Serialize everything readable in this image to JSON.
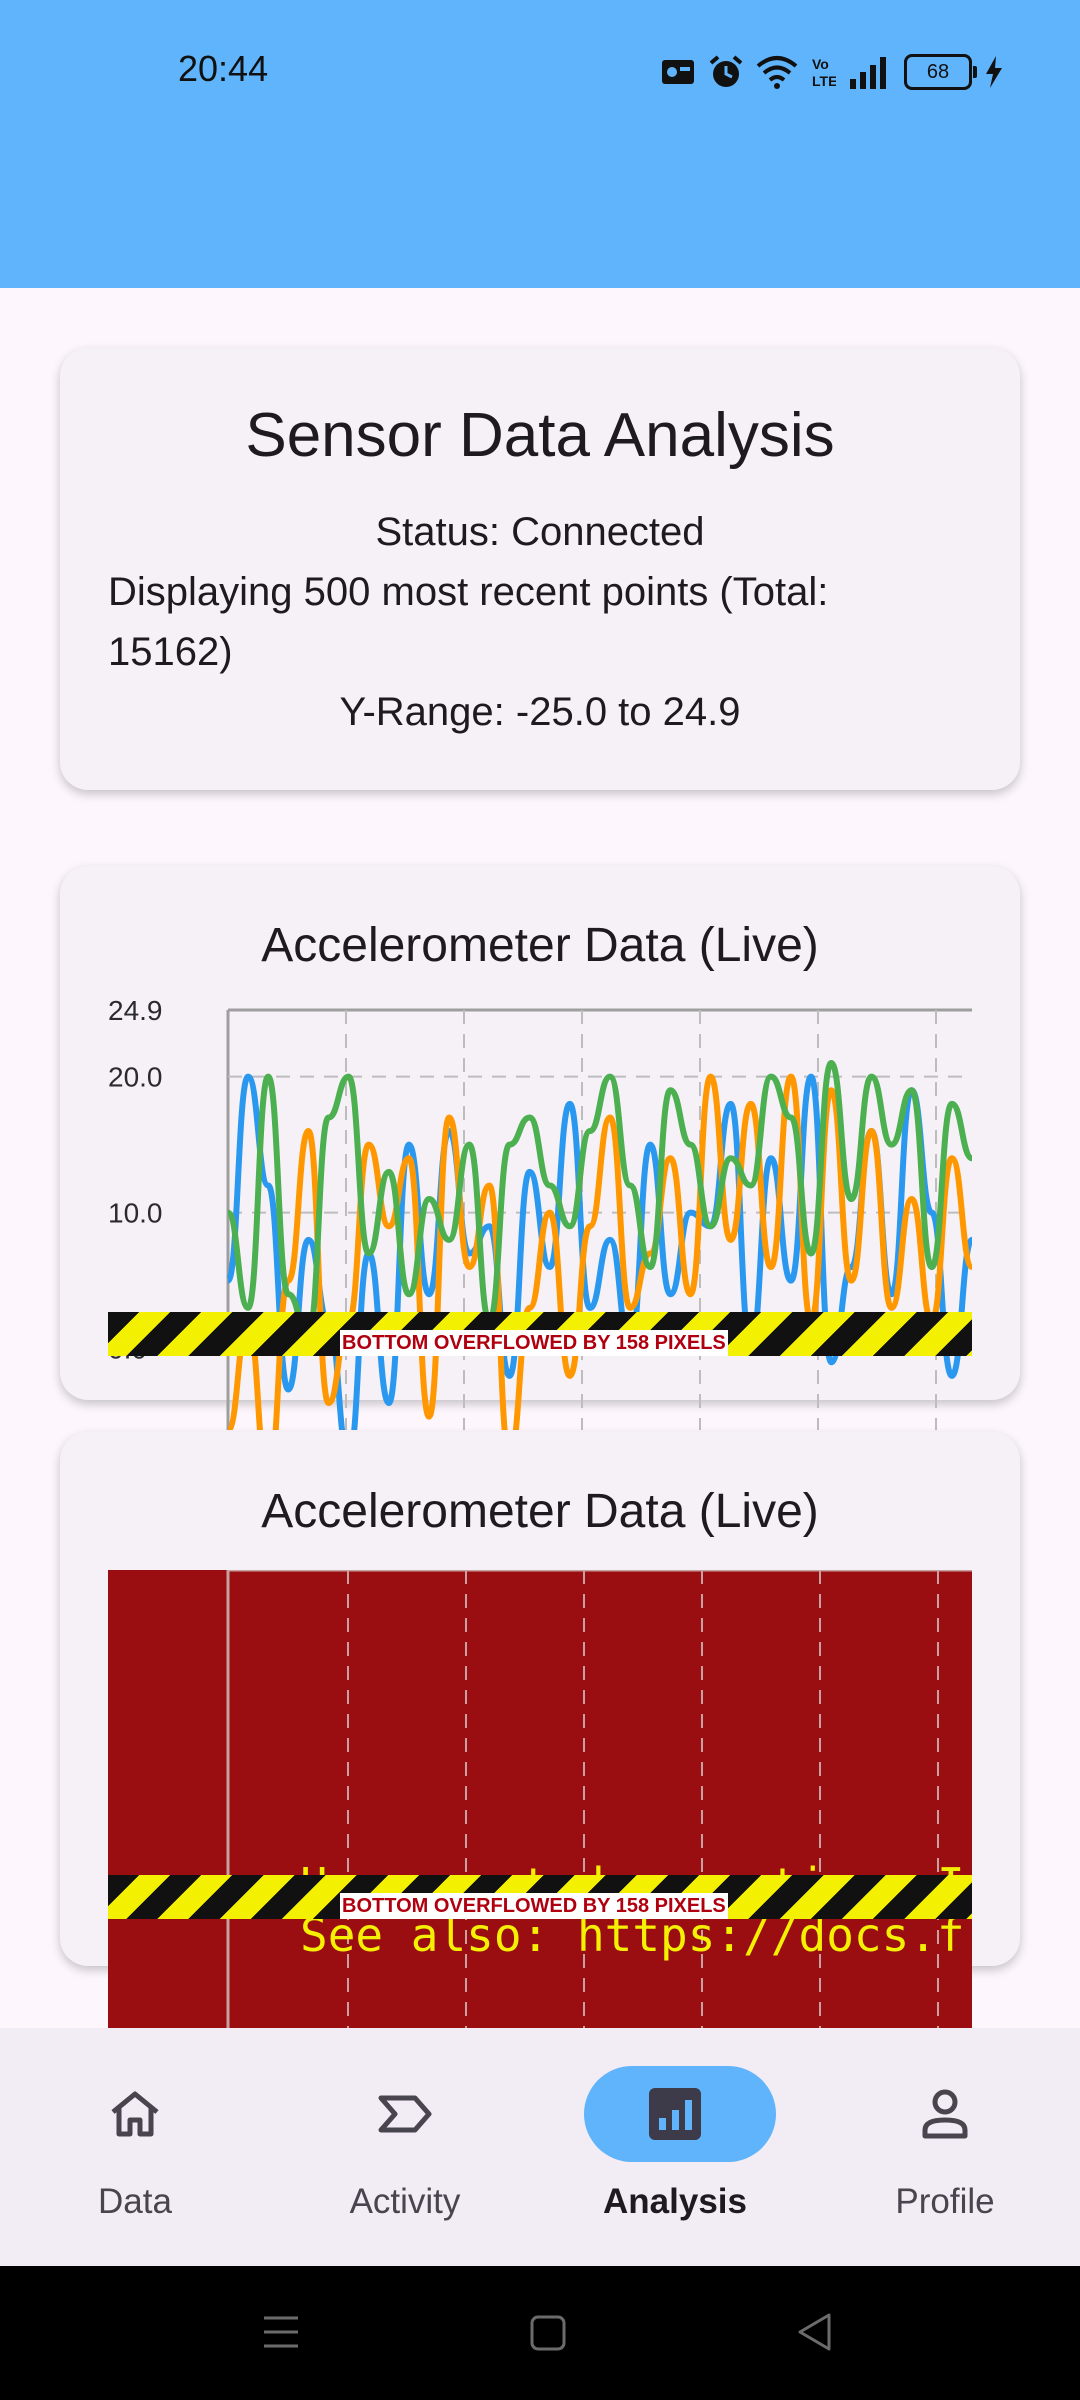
{
  "status_bar": {
    "time": "20:44",
    "battery": "68"
  },
  "summary": {
    "title": "Sensor Data Analysis",
    "status": "Status: Connected",
    "displaying_line1": "Displaying 500 most recent points (Total:",
    "displaying_line2": "15162)",
    "y_range": "Y-Range: -25.0 to 24.9"
  },
  "chart1": {
    "title": "Accelerometer Data (Live)",
    "overflow_label": "BOTTOM OVERFLOWED BY 158 PIXELS"
  },
  "chart2": {
    "title": "Accelerometer Data (Live)",
    "overflow_label": "BOTTOM OVERFLOWED BY 158 PIXELS",
    "error_line1": "Unsupported operation: Infi",
    "error_line2": "See also: https://docs.flut"
  },
  "chart_data": {
    "type": "line",
    "y_tick_labels": [
      "24.9",
      "20.0",
      "10.0",
      "0.0"
    ],
    "y_ticks": [
      24.9,
      20.0,
      10.0,
      0.0
    ],
    "ylim": [
      -25.0,
      24.9
    ],
    "grid": true,
    "colors": {
      "blue": "#2b98f0",
      "orange": "#ff9800",
      "green": "#4caf50"
    },
    "series": [
      {
        "color": "#2b98f0",
        "values": [
          5,
          20,
          12,
          -3,
          8,
          2,
          -8,
          7,
          -4,
          15,
          4,
          16,
          7,
          9,
          -2,
          13,
          6,
          18,
          3,
          8,
          0,
          15,
          4,
          10,
          9,
          18,
          0,
          14,
          5,
          20,
          -1,
          6,
          16,
          4,
          19,
          10,
          -2,
          8
        ]
      },
      {
        "color": "#ff9800",
        "values": [
          -6,
          2,
          -10,
          5,
          16,
          -4,
          2,
          15,
          9,
          14,
          -5,
          17,
          6,
          12,
          -8,
          3,
          10,
          -2,
          9,
          17,
          3,
          7,
          14,
          4,
          20,
          8,
          18,
          6,
          20,
          2,
          19,
          5,
          16,
          3,
          11,
          2,
          14,
          6
        ]
      },
      {
        "color": "#4caf50",
        "values": [
          10,
          3,
          20,
          4,
          1,
          17,
          20,
          7,
          13,
          4,
          11,
          8,
          15,
          2,
          15,
          17,
          12,
          9,
          16,
          20,
          12,
          6,
          19,
          15,
          9,
          14,
          12,
          20,
          17,
          7,
          21,
          11,
          20,
          15,
          19,
          6,
          18,
          14
        ]
      }
    ]
  },
  "nav": {
    "items": [
      {
        "label": "Data"
      },
      {
        "label": "Activity"
      },
      {
        "label": "Analysis"
      },
      {
        "label": "Profile"
      }
    ],
    "active_index": 2,
    "active_color": "#5fb4fb"
  }
}
